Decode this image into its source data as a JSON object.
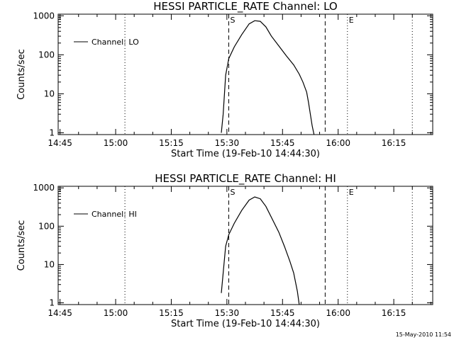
{
  "footer": "15-May-2010 11:54",
  "chart_data": [
    {
      "type": "line",
      "title": "HESSI PARTICLE_RATE Channel: LO",
      "xlabel": "Start Time (19-Feb-10 14:44:30)",
      "ylabel": "Counts/sec",
      "yscale": "log",
      "ylim": [
        0.9,
        1100
      ],
      "xlim": [
        "14:44:30",
        "16:25:30"
      ],
      "x_ticks": [
        "14:45",
        "15:00",
        "15:15",
        "15:30",
        "15:45",
        "16:00",
        "16:15"
      ],
      "y_ticks": [
        "1",
        "10",
        "100",
        "1000"
      ],
      "legend": {
        "position": "top-left"
      },
      "series": [
        {
          "name": "Channel: LO",
          "x": [
            "15:28:30",
            "15:29:00",
            "15:29:40",
            "15:30:30",
            "15:32:00",
            "15:34:00",
            "15:36:00",
            "15:37:30",
            "15:39:00",
            "15:40:30",
            "15:42:00",
            "15:44:00",
            "15:46:00",
            "15:48:00",
            "15:49:30",
            "15:50:30",
            "15:51:30",
            "15:52:00",
            "15:52:30",
            "15:53:00",
            "15:53:30"
          ],
          "values": [
            1,
            3,
            30,
            80,
            160,
            330,
            620,
            750,
            720,
            520,
            300,
            170,
            95,
            55,
            32,
            20,
            11,
            6,
            3,
            1.5,
            0.9
          ]
        }
      ],
      "markers": [
        {
          "type": "dashed",
          "label": "S",
          "x": "15:30:30"
        },
        {
          "type": "dashed",
          "label": "",
          "x": "15:56:30"
        },
        {
          "type": "dotted",
          "label": "",
          "x": "15:02:30"
        },
        {
          "type": "dotted",
          "label": "E",
          "x": "16:02:30"
        },
        {
          "type": "dotted",
          "label": "",
          "x": "16:20:00"
        }
      ]
    },
    {
      "type": "line",
      "title": "HESSI PARTICLE_RATE Channel: HI",
      "xlabel": "Start Time (19-Feb-10 14:44:30)",
      "ylabel": "Counts/sec",
      "yscale": "log",
      "ylim": [
        0.9,
        1100
      ],
      "xlim": [
        "14:44:30",
        "16:25:30"
      ],
      "x_ticks": [
        "14:45",
        "15:00",
        "15:15",
        "15:30",
        "15:45",
        "16:00",
        "16:15"
      ],
      "y_ticks": [
        "1",
        "10",
        "100",
        "1000"
      ],
      "legend": {
        "position": "top-left"
      },
      "series": [
        {
          "name": "Channel: HI",
          "x": [
            "15:28:30",
            "15:29:00",
            "15:29:40",
            "15:30:30",
            "15:32:00",
            "15:34:00",
            "15:36:00",
            "15:37:30",
            "15:39:00",
            "15:40:30",
            "15:42:00",
            "15:44:00",
            "15:45:30",
            "15:47:00",
            "15:48:00",
            "15:49:00",
            "15:49:30"
          ],
          "values": [
            1.8,
            6,
            30,
            60,
            120,
            260,
            480,
            580,
            520,
            330,
            170,
            70,
            30,
            12,
            6,
            2,
            0.9
          ]
        }
      ],
      "markers": [
        {
          "type": "dashed",
          "label": "S",
          "x": "15:30:30"
        },
        {
          "type": "dashed",
          "label": "",
          "x": "15:56:30"
        },
        {
          "type": "dotted",
          "label": "",
          "x": "15:02:30"
        },
        {
          "type": "dotted",
          "label": "E",
          "x": "16:02:30"
        },
        {
          "type": "dotted",
          "label": "",
          "x": "16:20:00"
        }
      ]
    }
  ]
}
